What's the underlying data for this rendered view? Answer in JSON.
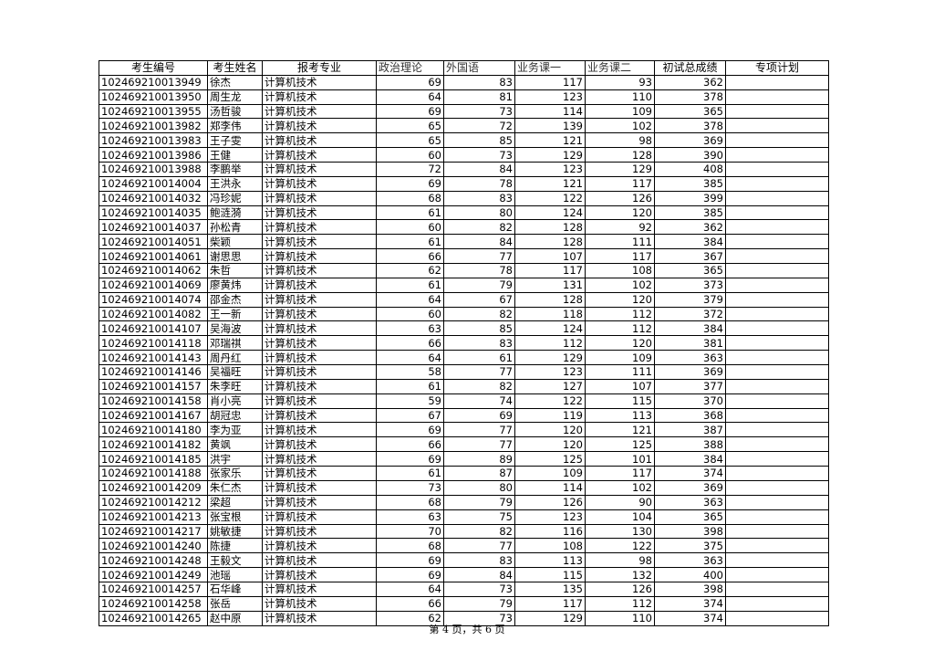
{
  "table": {
    "headers": [
      "考生编号",
      "考生姓名",
      "报考专业",
      "政治理论",
      "外国语",
      "业务课一",
      "业务课二",
      "初试总成绩",
      "专项计划"
    ],
    "rows": [
      [
        "102469210013949",
        "徐杰",
        "计算机技术",
        "69",
        "83",
        "117",
        "93",
        "362",
        ""
      ],
      [
        "102469210013950",
        "周生龙",
        "计算机技术",
        "64",
        "81",
        "123",
        "110",
        "378",
        ""
      ],
      [
        "102469210013955",
        "汤哲骏",
        "计算机技术",
        "69",
        "73",
        "114",
        "109",
        "365",
        ""
      ],
      [
        "102469210013982",
        "郑李伟",
        "计算机技术",
        "65",
        "72",
        "139",
        "102",
        "378",
        ""
      ],
      [
        "102469210013983",
        "王子雯",
        "计算机技术",
        "65",
        "85",
        "121",
        "98",
        "369",
        ""
      ],
      [
        "102469210013986",
        "王健",
        "计算机技术",
        "60",
        "73",
        "129",
        "128",
        "390",
        ""
      ],
      [
        "102469210013988",
        "李鹏举",
        "计算机技术",
        "72",
        "84",
        "123",
        "129",
        "408",
        ""
      ],
      [
        "102469210014004",
        "王洪永",
        "计算机技术",
        "69",
        "78",
        "121",
        "117",
        "385",
        ""
      ],
      [
        "102469210014032",
        "冯珍妮",
        "计算机技术",
        "68",
        "83",
        "122",
        "126",
        "399",
        ""
      ],
      [
        "102469210014035",
        "鲍涟漪",
        "计算机技术",
        "61",
        "80",
        "124",
        "120",
        "385",
        ""
      ],
      [
        "102469210014037",
        "孙松青",
        "计算机技术",
        "60",
        "82",
        "128",
        "92",
        "362",
        ""
      ],
      [
        "102469210014051",
        "柴颖",
        "计算机技术",
        "61",
        "84",
        "128",
        "111",
        "384",
        ""
      ],
      [
        "102469210014061",
        "谢思思",
        "计算机技术",
        "66",
        "77",
        "107",
        "117",
        "367",
        ""
      ],
      [
        "102469210014062",
        "朱哲",
        "计算机技术",
        "62",
        "78",
        "117",
        "108",
        "365",
        ""
      ],
      [
        "102469210014069",
        "廖黄炜",
        "计算机技术",
        "61",
        "79",
        "131",
        "102",
        "373",
        ""
      ],
      [
        "102469210014074",
        "邵金杰",
        "计算机技术",
        "64",
        "67",
        "128",
        "120",
        "379",
        ""
      ],
      [
        "102469210014082",
        "王一新",
        "计算机技术",
        "60",
        "82",
        "118",
        "112",
        "372",
        ""
      ],
      [
        "102469210014107",
        "吴海波",
        "计算机技术",
        "63",
        "85",
        "124",
        "112",
        "384",
        ""
      ],
      [
        "102469210014118",
        "邓瑞祺",
        "计算机技术",
        "66",
        "83",
        "112",
        "120",
        "381",
        ""
      ],
      [
        "102469210014143",
        "周丹红",
        "计算机技术",
        "64",
        "61",
        "129",
        "109",
        "363",
        ""
      ],
      [
        "102469210014146",
        "吴福旺",
        "计算机技术",
        "58",
        "77",
        "123",
        "111",
        "369",
        ""
      ],
      [
        "102469210014157",
        "朱李旺",
        "计算机技术",
        "61",
        "82",
        "127",
        "107",
        "377",
        ""
      ],
      [
        "102469210014158",
        "肖小亮",
        "计算机技术",
        "59",
        "74",
        "122",
        "115",
        "370",
        ""
      ],
      [
        "102469210014167",
        "胡冠忠",
        "计算机技术",
        "67",
        "69",
        "119",
        "113",
        "368",
        ""
      ],
      [
        "102469210014180",
        "李为亚",
        "计算机技术",
        "69",
        "77",
        "120",
        "121",
        "387",
        ""
      ],
      [
        "102469210014182",
        "黄飒",
        "计算机技术",
        "66",
        "77",
        "120",
        "125",
        "388",
        ""
      ],
      [
        "102469210014185",
        "洪宇",
        "计算机技术",
        "69",
        "89",
        "125",
        "101",
        "384",
        ""
      ],
      [
        "102469210014188",
        "张家乐",
        "计算机技术",
        "61",
        "87",
        "109",
        "117",
        "374",
        ""
      ],
      [
        "102469210014209",
        "朱仁杰",
        "计算机技术",
        "73",
        "80",
        "114",
        "102",
        "369",
        ""
      ],
      [
        "102469210014212",
        "梁超",
        "计算机技术",
        "68",
        "79",
        "126",
        "90",
        "363",
        ""
      ],
      [
        "102469210014213",
        "张宝根",
        "计算机技术",
        "63",
        "75",
        "123",
        "104",
        "365",
        ""
      ],
      [
        "102469210014217",
        "姚敏捷",
        "计算机技术",
        "70",
        "82",
        "116",
        "130",
        "398",
        ""
      ],
      [
        "102469210014240",
        "陈捷",
        "计算机技术",
        "68",
        "77",
        "108",
        "122",
        "375",
        ""
      ],
      [
        "102469210014248",
        "王毅文",
        "计算机技术",
        "69",
        "83",
        "113",
        "98",
        "363",
        ""
      ],
      [
        "102469210014249",
        "池瑶",
        "计算机技术",
        "69",
        "84",
        "115",
        "132",
        "400",
        ""
      ],
      [
        "102469210014257",
        "石华峰",
        "计算机技术",
        "64",
        "73",
        "135",
        "126",
        "398",
        ""
      ],
      [
        "102469210014258",
        "张岳",
        "计算机技术",
        "66",
        "79",
        "117",
        "112",
        "374",
        ""
      ],
      [
        "102469210014265",
        "赵中原",
        "计算机技术",
        "62",
        "73",
        "129",
        "110",
        "374",
        ""
      ]
    ]
  },
  "footer": {
    "page_label": "第 4 页，共 6 页"
  }
}
